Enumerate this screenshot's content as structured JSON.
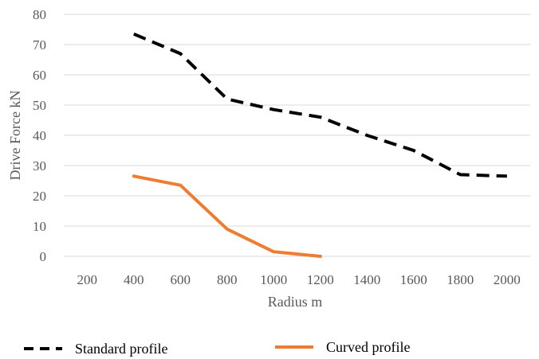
{
  "chart_data": {
    "type": "line",
    "xlabel": "Radius m",
    "ylabel": "Drive Force kN",
    "categories": [
      "200",
      "400",
      "600",
      "800",
      "1000",
      "1200",
      "1400",
      "1600",
      "1800",
      "2000"
    ],
    "ylim": [
      0,
      80
    ],
    "yticks": [
      "0",
      "10",
      "20",
      "30",
      "40",
      "50",
      "60",
      "70",
      "80"
    ],
    "grid": true,
    "legend_position": "bottom",
    "series": [
      {
        "name": "Standard profile",
        "color": "#000000",
        "dash": "dashed",
        "values": [
          null,
          73.5,
          67,
          52,
          48.5,
          46,
          40,
          35,
          27,
          26.5
        ]
      },
      {
        "name": "Curved profile",
        "color": "#ed7d31",
        "dash": "solid",
        "values": [
          null,
          26.5,
          23.5,
          9,
          1.5,
          0,
          null,
          null,
          null,
          null
        ]
      }
    ]
  }
}
